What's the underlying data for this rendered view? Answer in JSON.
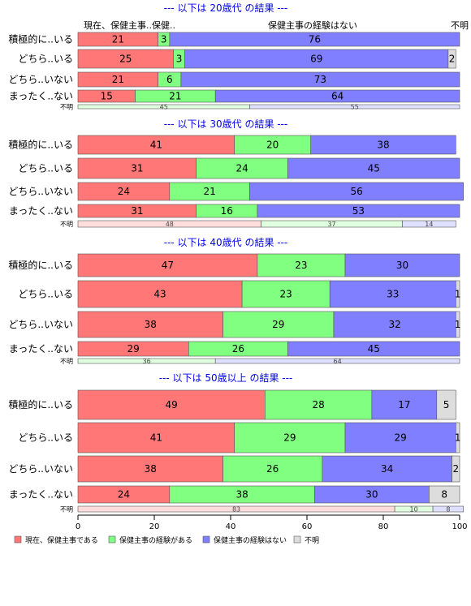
{
  "chart_data": {
    "type": "bar",
    "orientation": "horizontal",
    "stacked": true,
    "xlim": [
      0,
      100
    ],
    "x_ticks": [
      "0",
      "20",
      "40",
      "60",
      "80",
      "100"
    ],
    "series_names": [
      "現在、保健主事である",
      "保健主事の経験がある",
      "保健主事の経験はない",
      "不明"
    ],
    "series_colors": [
      "#ff7777",
      "#80ff80",
      "#7f7fff",
      "#dddddd"
    ],
    "header_labels": {
      "s1": "現在、保健主事..保健..",
      "s3": "保健主事の経験はない",
      "s4": "不明"
    },
    "panels": [
      {
        "title": "--- 以下は 20歳代 の結果 ---",
        "categories": [
          "積極的に..いる",
          "どちら..いる",
          "どちら..いない",
          "まったく..ない",
          "不明"
        ],
        "rows": [
          [
            21,
            3,
            76,
            0
          ],
          [
            25,
            3,
            69,
            2
          ],
          [
            21,
            6,
            73,
            0
          ],
          [
            15,
            21,
            64,
            0
          ],
          [
            0,
            45,
            55,
            0
          ]
        ]
      },
      {
        "title": "--- 以下は 30歳代 の結果 ---",
        "categories": [
          "積極的に..いる",
          "どちら..いる",
          "どちら..いない",
          "まったく..ない",
          "不明"
        ],
        "rows": [
          [
            41,
            20,
            38,
            0
          ],
          [
            31,
            24,
            45,
            0
          ],
          [
            24,
            21,
            56,
            0
          ],
          [
            31,
            16,
            53,
            0
          ],
          [
            48,
            37,
            14,
            0
          ]
        ]
      },
      {
        "title": "--- 以下は 40歳代 の結果 ---",
        "categories": [
          "積極的に..いる",
          "どちら..いる",
          "どちら..いない",
          "まったく..ない",
          "不明"
        ],
        "rows": [
          [
            47,
            23,
            30,
            0
          ],
          [
            43,
            23,
            33,
            1
          ],
          [
            38,
            29,
            32,
            1
          ],
          [
            29,
            26,
            45,
            0
          ],
          [
            0,
            36,
            64,
            0
          ]
        ]
      },
      {
        "title": "--- 以下は 50歳以上 の結果 ---",
        "categories": [
          "積極的に..いる",
          "どちら..いる",
          "どちら..いない",
          "まったく..ない",
          "不明"
        ],
        "rows": [
          [
            49,
            28,
            17,
            5
          ],
          [
            41,
            29,
            29,
            1
          ],
          [
            38,
            26,
            34,
            2
          ],
          [
            24,
            38,
            30,
            8
          ],
          [
            83,
            10,
            8,
            0
          ]
        ]
      }
    ]
  },
  "colors": {
    "title": "#0000ee",
    "outline": "#555555"
  }
}
